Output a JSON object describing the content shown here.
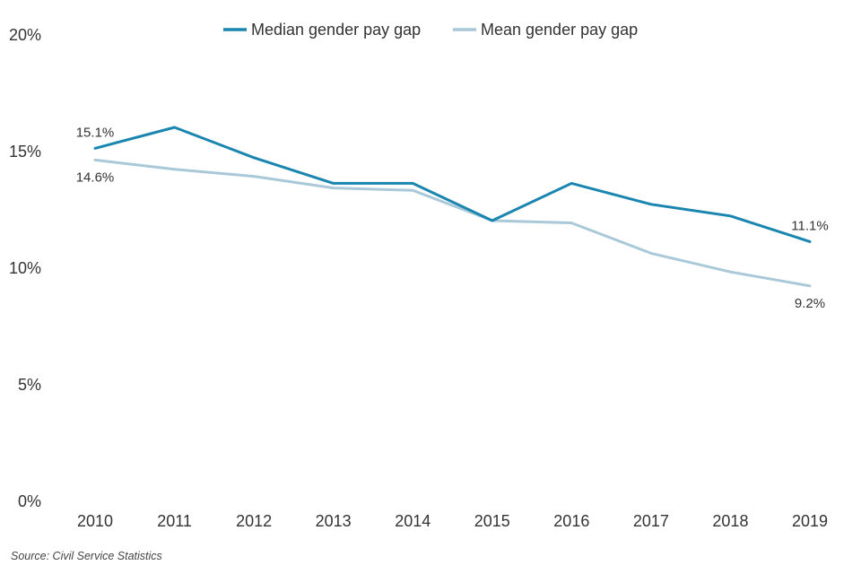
{
  "chart_data": {
    "type": "line",
    "title": "",
    "xlabel": "",
    "ylabel": "",
    "categories": [
      "2010",
      "2011",
      "2012",
      "2013",
      "2014",
      "2015",
      "2016",
      "2017",
      "2018",
      "2019"
    ],
    "ylim": [
      0,
      20
    ],
    "y_ticks": [
      "0%",
      "5%",
      "10%",
      "15%",
      "20%"
    ],
    "y_tick_values": [
      0,
      5,
      10,
      15,
      20
    ],
    "grid": false,
    "legend_position": "top-center",
    "series": [
      {
        "name": "Median gender pay gap",
        "color": "#1a86b0",
        "values": [
          15.1,
          16.0,
          14.7,
          13.6,
          13.6,
          12.0,
          13.6,
          12.7,
          12.2,
          11.1
        ]
      },
      {
        "name": "Mean gender pay gap",
        "color": "#a9c9d9",
        "values": [
          14.6,
          14.2,
          13.9,
          13.4,
          13.3,
          12.0,
          11.9,
          10.6,
          9.8,
          9.2
        ]
      }
    ],
    "data_labels": [
      {
        "series": 0,
        "index": 0,
        "text": "15.1%",
        "position": "above"
      },
      {
        "series": 1,
        "index": 0,
        "text": "14.6%",
        "position": "below"
      },
      {
        "series": 0,
        "index": 9,
        "text": "11.1%",
        "position": "above"
      },
      {
        "series": 1,
        "index": 9,
        "text": "9.2%",
        "position": "below"
      }
    ]
  },
  "source": "Source: Civil Service Statistics"
}
